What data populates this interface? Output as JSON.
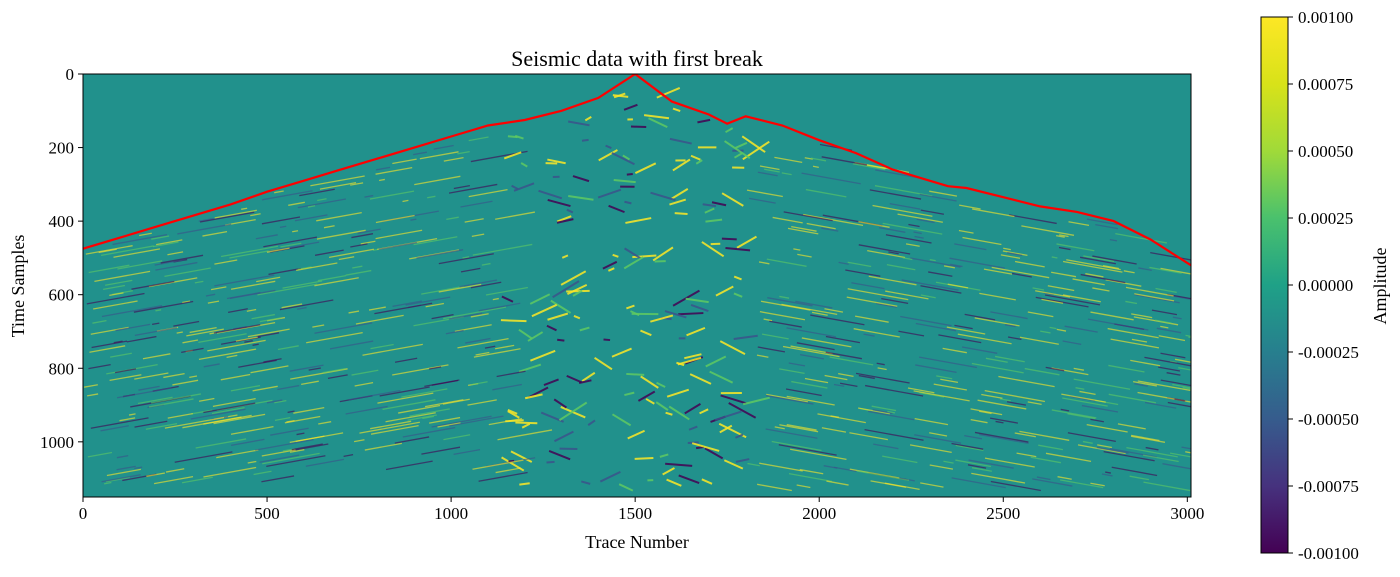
{
  "chart_data": {
    "type": "heatmap",
    "title": "Seismic data with first break",
    "xlabel": "Trace Number",
    "ylabel": "Time Samples",
    "xlim": [
      0,
      3010
    ],
    "ylim": [
      1150,
      0
    ],
    "x_ticks": [
      "0",
      "500",
      "1000",
      "1500",
      "2000",
      "2500",
      "3000"
    ],
    "y_ticks": [
      "0",
      "200",
      "400",
      "600",
      "800",
      "1000"
    ],
    "colorbar": {
      "label": "Amplitude",
      "range": [
        -0.001,
        0.001
      ],
      "colormap": "viridis",
      "ticks": [
        "0.00100",
        "0.00075",
        "0.00050",
        "0.00025",
        "0.00000",
        "-0.00025",
        "-0.00050",
        "-0.00075",
        "-0.00100"
      ]
    },
    "background_color": "#21918c",
    "first_break_line_color": "#ff0000",
    "first_break": [
      {
        "x": 0,
        "y": 475
      },
      {
        "x": 100,
        "y": 445
      },
      {
        "x": 200,
        "y": 415
      },
      {
        "x": 300,
        "y": 385
      },
      {
        "x": 400,
        "y": 355
      },
      {
        "x": 500,
        "y": 320
      },
      {
        "x": 600,
        "y": 290
      },
      {
        "x": 700,
        "y": 260
      },
      {
        "x": 800,
        "y": 230
      },
      {
        "x": 900,
        "y": 200
      },
      {
        "x": 1000,
        "y": 170
      },
      {
        "x": 1100,
        "y": 140
      },
      {
        "x": 1200,
        "y": 125
      },
      {
        "x": 1300,
        "y": 100
      },
      {
        "x": 1400,
        "y": 65
      },
      {
        "x": 1500,
        "y": 0
      },
      {
        "x": 1600,
        "y": 75
      },
      {
        "x": 1700,
        "y": 110
      },
      {
        "x": 1750,
        "y": 135
      },
      {
        "x": 1800,
        "y": 115
      },
      {
        "x": 1900,
        "y": 140
      },
      {
        "x": 2000,
        "y": 180
      },
      {
        "x": 2100,
        "y": 215
      },
      {
        "x": 2200,
        "y": 260
      },
      {
        "x": 2300,
        "y": 290
      },
      {
        "x": 2350,
        "y": 305
      },
      {
        "x": 2400,
        "y": 310
      },
      {
        "x": 2500,
        "y": 335
      },
      {
        "x": 2600,
        "y": 360
      },
      {
        "x": 2700,
        "y": 375
      },
      {
        "x": 2800,
        "y": 400
      },
      {
        "x": 2900,
        "y": 450
      },
      {
        "x": 3010,
        "y": 520
      }
    ]
  }
}
